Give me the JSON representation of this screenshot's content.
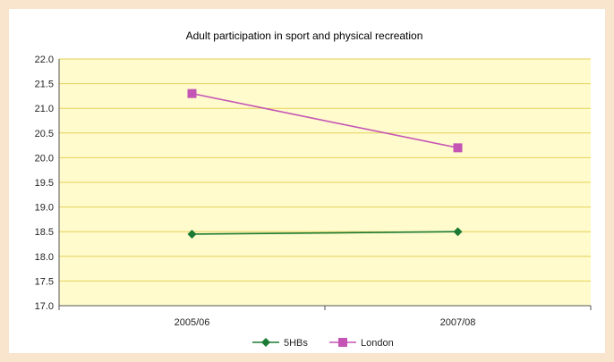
{
  "chart_data": {
    "type": "line",
    "title": "Adult participation in sport and physical recreation",
    "xlabel": "",
    "ylabel": "",
    "categories": [
      "2005/06",
      "2007/08"
    ],
    "ylim": [
      17.0,
      22.0
    ],
    "yticks": [
      "22.0",
      "21.5",
      "21.0",
      "20.5",
      "20.0",
      "19.5",
      "19.0",
      "18.5",
      "18.0",
      "17.5",
      "17.0"
    ],
    "grid": true,
    "legend_position": "bottom",
    "plot_background": "#fffbcc",
    "grid_color": "#e6d25a",
    "series": [
      {
        "name": "5HBs",
        "values": [
          18.45,
          18.5
        ],
        "color": "#1b7a33",
        "marker": "diamond"
      },
      {
        "name": "London",
        "values": [
          21.3,
          20.2
        ],
        "color": "#c455b5",
        "marker": "square"
      }
    ]
  }
}
